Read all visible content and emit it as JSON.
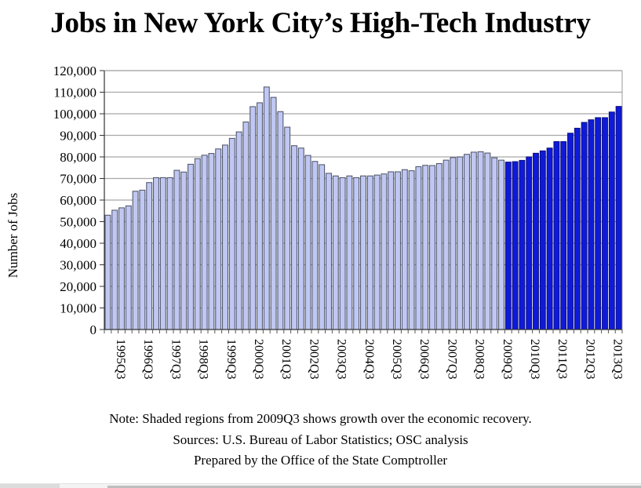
{
  "title": "Jobs in New York City’s High-Tech Industry",
  "notes": {
    "note": "Note: Shaded regions from 2009Q3 shows growth over the economic recovery.",
    "sources": "Sources: U.S. Bureau of Labor Statistics; OSC analysis",
    "prepared": "Prepared by the Office of the State Comptroller"
  },
  "colors": {
    "pre_recovery": "#bfc7f2",
    "recovery": "#0f1ad9",
    "gridline": "#a8a8a8"
  },
  "chart_data": {
    "type": "bar",
    "title": "Jobs in New York City’s High-Tech Industry",
    "xlabel": "",
    "ylabel": "Number of Jobs",
    "ylim": [
      0,
      120000
    ],
    "yticks": [
      0,
      10000,
      20000,
      30000,
      40000,
      50000,
      60000,
      70000,
      80000,
      90000,
      100000,
      110000,
      120000
    ],
    "ytick_labels": [
      "0",
      "10,000",
      "20,000",
      "30,000",
      "40,000",
      "50,000",
      "60,000",
      "70,000",
      "80,000",
      "90,000",
      "100,000",
      "110,000",
      "120,000"
    ],
    "grid": true,
    "legend": "none",
    "highlight_from": "2009Q3",
    "xtick_labels": [
      "1995Q3",
      "1996Q3",
      "1997Q3",
      "1998Q3",
      "1999Q3",
      "2000Q3",
      "2001Q3",
      "2002Q3",
      "2003Q3",
      "2004Q3",
      "2005Q3",
      "2006Q3",
      "2007Q3",
      "2008Q3",
      "2009Q3",
      "2010Q3",
      "2011Q3",
      "2012Q3",
      "2013Q3"
    ],
    "categories": [
      "1995Q1",
      "1995Q2",
      "1995Q3",
      "1995Q4",
      "1996Q1",
      "1996Q2",
      "1996Q3",
      "1996Q4",
      "1997Q1",
      "1997Q2",
      "1997Q3",
      "1997Q4",
      "1998Q1",
      "1998Q2",
      "1998Q3",
      "1998Q4",
      "1999Q1",
      "1999Q2",
      "1999Q3",
      "1999Q4",
      "2000Q1",
      "2000Q2",
      "2000Q3",
      "2000Q4",
      "2001Q1",
      "2001Q2",
      "2001Q3",
      "2001Q4",
      "2002Q1",
      "2002Q2",
      "2002Q3",
      "2002Q4",
      "2003Q1",
      "2003Q2",
      "2003Q3",
      "2003Q4",
      "2004Q1",
      "2004Q2",
      "2004Q3",
      "2004Q4",
      "2005Q1",
      "2005Q2",
      "2005Q3",
      "2005Q4",
      "2006Q1",
      "2006Q2",
      "2006Q3",
      "2006Q4",
      "2007Q1",
      "2007Q2",
      "2007Q3",
      "2007Q4",
      "2008Q1",
      "2008Q2",
      "2008Q3",
      "2008Q4",
      "2009Q1",
      "2009Q2",
      "2009Q3",
      "2009Q4",
      "2010Q1",
      "2010Q2",
      "2010Q3",
      "2010Q4",
      "2011Q1",
      "2011Q2",
      "2011Q3",
      "2011Q4",
      "2012Q1",
      "2012Q2",
      "2012Q3",
      "2012Q4",
      "2013Q1",
      "2013Q2",
      "2013Q3"
    ],
    "values": [
      53000,
      55300,
      56400,
      57300,
      64100,
      64600,
      68100,
      70400,
      70400,
      70400,
      73800,
      73000,
      76600,
      79200,
      80800,
      81600,
      83700,
      85500,
      88600,
      91600,
      96200,
      103300,
      105100,
      112400,
      107600,
      101000,
      93800,
      85200,
      84100,
      80700,
      77900,
      76400,
      72400,
      71200,
      70400,
      71200,
      70400,
      71200,
      71200,
      71600,
      72100,
      73100,
      73100,
      74100,
      73600,
      75500,
      76100,
      76000,
      76900,
      78500,
      79700,
      80000,
      81200,
      82200,
      82400,
      81800,
      79600,
      78500,
      77600,
      77800,
      78400,
      80000,
      81700,
      82800,
      84100,
      87100,
      87100,
      91000,
      93300,
      96000,
      97200,
      98200,
      98200,
      100800,
      103400
    ]
  }
}
